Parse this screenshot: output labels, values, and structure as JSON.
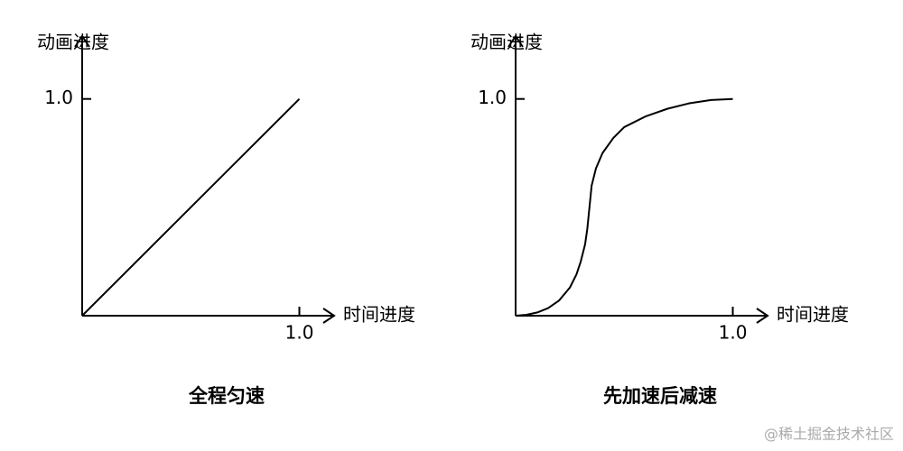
{
  "chart_data": [
    {
      "type": "line",
      "title": "全程匀速",
      "x_label": "时间进度",
      "y_label": "动画进度",
      "x": [
        0,
        1
      ],
      "values": [
        0,
        1
      ],
      "color": "#000000",
      "xlim": [
        0,
        1.16
      ],
      "ylim": [
        0,
        1.29
      ],
      "xticks": [
        {
          "value": 1,
          "label": "1.0"
        }
      ],
      "yticks": [
        {
          "value": 1,
          "label": "1.0"
        }
      ]
    },
    {
      "type": "line",
      "title": "先加速后减速",
      "x_label": "时间进度",
      "y_label": "动画进度",
      "x": [
        0,
        0.05,
        0.1,
        0.15,
        0.2,
        0.25,
        0.28,
        0.3,
        0.32,
        0.33,
        0.34,
        0.35,
        0.37,
        0.4,
        0.45,
        0.5,
        0.6,
        0.7,
        0.8,
        0.9,
        1
      ],
      "values": [
        0,
        0.004,
        0.015,
        0.035,
        0.07,
        0.13,
        0.19,
        0.25,
        0.33,
        0.4,
        0.5,
        0.6,
        0.68,
        0.75,
        0.82,
        0.87,
        0.92,
        0.955,
        0.98,
        0.995,
        1
      ],
      "color": "#000000",
      "xlim": [
        0,
        1.16
      ],
      "ylim": [
        0,
        1.29
      ],
      "xticks": [
        {
          "value": 1,
          "label": "1.0"
        }
      ],
      "yticks": [
        {
          "value": 1,
          "label": "1.0"
        }
      ]
    }
  ],
  "watermark": "@稀土掘金技术社区"
}
